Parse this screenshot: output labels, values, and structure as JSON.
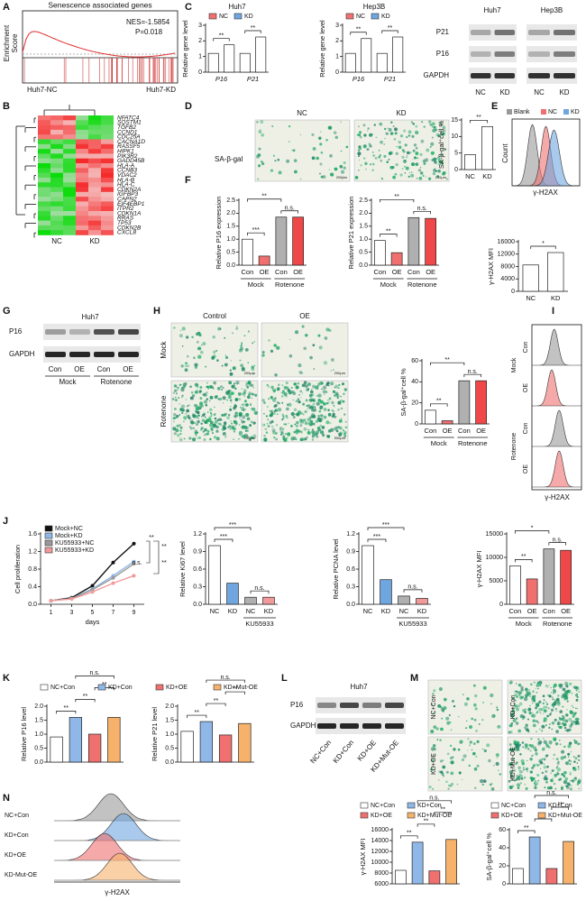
{
  "figure": {
    "panels": [
      "A",
      "B",
      "C",
      "D",
      "E",
      "F",
      "G",
      "H",
      "I",
      "J",
      "K",
      "L",
      "M",
      "N"
    ],
    "gsea": {
      "title": "Senescence associated genes",
      "nes": "NES=-1.5854",
      "p": "P=0.018",
      "ylabel": [
        "Enrichment",
        "Score"
      ],
      "groups": [
        "Huh7-NC",
        "Huh7-KD"
      ]
    },
    "heatmap": {
      "genes": [
        "NFATC4",
        "SQSTM1",
        "TGFB2",
        "CCND1",
        "CDC25A",
        "CACNA1D",
        "RASSF5",
        "HIPK1",
        "PIK3R2",
        "GADD45B",
        "HLA-A",
        "CCNB3",
        "VDAC2",
        "HLA-B",
        "HLA-C",
        "CDKN2A",
        "IGFBP3",
        "CAPN2",
        "EIF4EBP1",
        "ITPR2",
        "CDKN1A",
        "RRAS",
        "TP53",
        "CDKN2B",
        "CXCL8"
      ],
      "groups": [
        "NC",
        "KD"
      ]
    },
    "blot_c": {
      "cells": [
        "Huh7",
        "Hep3B"
      ],
      "proteins": [
        "P21",
        "P16",
        "GAPDH"
      ],
      "lanes": [
        "NC",
        "KD",
        "NC",
        "KD"
      ]
    },
    "micro_d": {
      "labels": [
        "NC",
        "KD"
      ],
      "stain": "SA-β-gal",
      "scale": "200μm"
    },
    "flow_e": {
      "legend": [
        "Blank",
        "NC",
        "KD"
      ],
      "ylabel": "Count",
      "xlabel": "γ-H2AX"
    },
    "blot_g": {
      "cell": "Huh7",
      "proteins": [
        "P16",
        "GAPDH"
      ],
      "lanes": [
        "Con",
        "OE",
        "Con",
        "OE"
      ],
      "groups": [
        "Mock",
        "Rotenone"
      ]
    },
    "micro_h": {
      "columns": [
        "Control",
        "OE"
      ],
      "rows": [
        "Mock",
        "Rotenone"
      ],
      "scale": "200μm"
    },
    "flow_i": {
      "rows": [
        "Con",
        "OE",
        "Con",
        "OE"
      ],
      "groups": [
        "Mock",
        "Rotenone"
      ],
      "xlabel": "γ-H2AX"
    },
    "blot_l": {
      "cell": "Huh7",
      "proteins": [
        "P16",
        "GAPDH"
      ],
      "lanes": [
        "NC+Con",
        "KD+Con",
        "KD+OE",
        "KD+Mut-OE"
      ]
    },
    "micro_m": {
      "labels": [
        "NC+Con",
        "KD+Con",
        "KD+OE",
        "KD+Mut-OE"
      ]
    },
    "flow_n": {
      "rows": [
        "NC+Con",
        "KD+Con",
        "KD+OE",
        "KD-Mut-OE"
      ],
      "xlabel": "γ-H2AX"
    }
  },
  "chart_data": [
    {
      "type": "bar",
      "title": "Huh7",
      "ylabel": "Relative gene level",
      "categories": [
        "P16",
        "P21"
      ],
      "series": [
        {
          "name": "NC",
          "color": "#f07070",
          "values": [
            1.2,
            1.2
          ]
        },
        {
          "name": "KD",
          "color": "#6fa6e0",
          "values": [
            1.75,
            2.25
          ]
        }
      ],
      "ylim": [
        0,
        3
      ],
      "yticks": [
        0,
        1,
        2,
        3
      ],
      "significance": [
        {
          "label": "**",
          "between": [
            0,
            1
          ]
        },
        {
          "label": "**",
          "between": [
            2,
            3
          ]
        }
      ]
    },
    {
      "type": "bar",
      "title": "Hep3B",
      "ylabel": "Relative gene level",
      "categories": [
        "P16",
        "P21"
      ],
      "series": [
        {
          "name": "NC",
          "color": "#f07070",
          "values": [
            1.2,
            1.2
          ]
        },
        {
          "name": "KD",
          "color": "#6fa6e0",
          "values": [
            2.15,
            2.25
          ]
        }
      ],
      "ylim": [
        0,
        3
      ],
      "yticks": [
        0,
        1,
        2,
        3
      ],
      "significance": [
        {
          "label": "**",
          "between": [
            0,
            1
          ]
        },
        {
          "label": "**",
          "between": [
            2,
            3
          ]
        }
      ]
    },
    {
      "type": "bar",
      "ylabel": "SA-β-gal⁺cell %",
      "categories": [
        "NC",
        "KD"
      ],
      "values": [
        4.5,
        13
      ],
      "ylim": [
        0,
        15
      ],
      "yticks": [
        0,
        5,
        10,
        15
      ],
      "significance": [
        {
          "label": "**",
          "between": [
            0,
            1
          ]
        }
      ]
    },
    {
      "type": "bar",
      "ylabel": "γ-H2AX MFI",
      "categories": [
        "NC",
        "KD"
      ],
      "values": [
        8500,
        12500
      ],
      "ylim": [
        0,
        16000
      ],
      "yticks": [
        0,
        4000,
        8000,
        12000,
        16000
      ],
      "significance": [
        {
          "label": "*",
          "between": [
            0,
            1
          ]
        }
      ]
    },
    {
      "type": "bar",
      "ylabel": "Relative P16 expression",
      "categories": [
        "Con",
        "OE",
        "Con",
        "OE"
      ],
      "values": [
        1.0,
        0.35,
        1.85,
        1.85
      ],
      "colors": [
        "#ffffff",
        "#f07070",
        "#b0b0b0",
        "#f04848"
      ],
      "groups": [
        {
          "label": "Mock",
          "span": [
            0,
            1
          ]
        },
        {
          "label": "Rotenone",
          "span": [
            2,
            3
          ]
        }
      ],
      "ylim": [
        0,
        2.5
      ],
      "yticks": [
        {
          "value": 0,
          "label": "0.0"
        },
        0.5,
        {
          "value": 1,
          "label": "1.0"
        },
        1.5,
        {
          "value": 2,
          "label": "2.0"
        },
        2.5
      ],
      "significance": [
        {
          "label": "***",
          "between": [
            0,
            1
          ]
        },
        {
          "label": "n.s.",
          "between": [
            2,
            3
          ]
        },
        {
          "label": "**",
          "between": [
            0,
            2
          ]
        }
      ]
    },
    {
      "type": "bar",
      "ylabel": "Relative P21 expression",
      "categories": [
        "Con",
        "OE",
        "Con",
        "OE"
      ],
      "values": [
        0.95,
        0.48,
        1.83,
        1.8
      ],
      "colors": [
        "#ffffff",
        "#f07070",
        "#b0b0b0",
        "#f04848"
      ],
      "groups": [
        {
          "label": "Mock",
          "span": [
            0,
            1
          ]
        },
        {
          "label": "Rotenone",
          "span": [
            2,
            3
          ]
        }
      ],
      "ylim": [
        0,
        2.5
      ],
      "yticks": [
        {
          "value": 0,
          "label": "0.0"
        },
        0.5,
        {
          "value": 1,
          "label": "1.0"
        },
        1.5,
        {
          "value": 2,
          "label": "2.0"
        },
        2.5
      ],
      "significance": [
        {
          "label": "**",
          "between": [
            0,
            1
          ]
        },
        {
          "label": "n.s.",
          "between": [
            2,
            3
          ]
        },
        {
          "label": "**",
          "between": [
            0,
            2
          ]
        }
      ]
    },
    {
      "type": "bar",
      "ylabel": "SA-β-gal⁺cell %",
      "categories": [
        "Con",
        "OE",
        "Con",
        "OE"
      ],
      "values": [
        13,
        3,
        41,
        41
      ],
      "colors": [
        "#ffffff",
        "#f07070",
        "#b0b0b0",
        "#f04848"
      ],
      "groups": [
        {
          "label": "Mock",
          "span": [
            0,
            1
          ]
        },
        {
          "label": "Rotenone",
          "span": [
            2,
            3
          ]
        }
      ],
      "ylim": [
        0,
        60
      ],
      "yticks": [
        0,
        20,
        40,
        60
      ],
      "significance": [
        {
          "label": "**",
          "between": [
            0,
            1
          ]
        },
        {
          "label": "n.s.",
          "between": [
            2,
            3
          ]
        },
        {
          "label": "**",
          "between": [
            0,
            2
          ]
        }
      ]
    },
    {
      "type": "line",
      "ylabel": "Cell proliferation",
      "xlabel": "days",
      "x": [
        1,
        3,
        5,
        7,
        9
      ],
      "xlim": [
        0,
        10
      ],
      "xticks": [
        1,
        3,
        5,
        7,
        9
      ],
      "ylim": [
        0,
        1.6
      ],
      "yticks": [
        {
          "value": 0,
          "label": "0.0"
        },
        0.4,
        0.8,
        1.2,
        1.6
      ],
      "series": [
        {
          "name": "Mock+NC",
          "color": "#111111",
          "values": [
            0.08,
            0.15,
            0.42,
            0.95,
            1.38
          ]
        },
        {
          "name": "Mock+KD",
          "color": "#8fb8e8",
          "values": [
            0.08,
            0.13,
            0.35,
            0.65,
            0.97
          ]
        },
        {
          "name": "KU55933+NC",
          "color": "#999999",
          "values": [
            0.08,
            0.13,
            0.33,
            0.6,
            0.92
          ]
        },
        {
          "name": "KU55933+KD",
          "color": "#f29a9a",
          "values": [
            0.08,
            0.12,
            0.28,
            0.48,
            0.65
          ]
        }
      ],
      "annotations": [
        "**",
        "**",
        "n.s.",
        "**"
      ]
    },
    {
      "type": "bar",
      "ylabel": "Relative Ki67 level",
      "categories": [
        "NC",
        "KD",
        "NC",
        "KD"
      ],
      "values": [
        1.0,
        0.36,
        0.12,
        0.12
      ],
      "colors": [
        "#ffffff",
        "#6fa6e0",
        "#b0b0b0",
        "#f29a9a"
      ],
      "groups": [
        {
          "label": "KU55933",
          "span": [
            2,
            3
          ]
        }
      ],
      "ylim": [
        0,
        1.2
      ],
      "yticks": [
        {
          "value": 0,
          "label": "0.0"
        },
        0.3,
        0.6,
        0.9,
        1.2
      ],
      "significance": [
        {
          "label": "***",
          "between": [
            0,
            1
          ]
        },
        {
          "label": "n.s.",
          "between": [
            2,
            3
          ]
        },
        {
          "label": "***",
          "between": [
            0,
            2
          ]
        }
      ]
    },
    {
      "type": "bar",
      "ylabel": "Relative PCNA level",
      "categories": [
        "NC",
        "KD",
        "NC",
        "KD"
      ],
      "values": [
        1.0,
        0.42,
        0.14,
        0.1
      ],
      "colors": [
        "#ffffff",
        "#6fa6e0",
        "#b0b0b0",
        "#f29a9a"
      ],
      "groups": [
        {
          "label": "KU55933",
          "span": [
            2,
            3
          ]
        }
      ],
      "ylim": [
        0,
        1.2
      ],
      "yticks": [
        {
          "value": 0,
          "label": "0.0"
        },
        0.3,
        0.6,
        0.9,
        1.2
      ],
      "significance": [
        {
          "label": "***",
          "between": [
            0,
            1
          ]
        },
        {
          "label": "n.s.",
          "between": [
            2,
            3
          ]
        },
        {
          "label": "***",
          "between": [
            0,
            2
          ]
        }
      ]
    },
    {
      "type": "bar",
      "ylabel": "γ-H2AX MFI",
      "categories": [
        "Con",
        "OE",
        "Con",
        "OE"
      ],
      "values": [
        8200,
        5400,
        11800,
        11500
      ],
      "colors": [
        "#ffffff",
        "#f07070",
        "#b0b0b0",
        "#f04848"
      ],
      "groups": [
        {
          "label": "Mock",
          "span": [
            0,
            1
          ]
        },
        {
          "label": "Rotenone",
          "span": [
            2,
            3
          ]
        }
      ],
      "ylim": [
        0,
        15000
      ],
      "yticks": [
        0,
        5000,
        10000,
        15000
      ],
      "significance": [
        {
          "label": "**",
          "between": [
            0,
            1
          ]
        },
        {
          "label": "n.s.",
          "between": [
            2,
            3
          ]
        },
        {
          "label": "*",
          "between": [
            0,
            2
          ]
        }
      ]
    },
    {
      "type": "bar",
      "ylabel": "Relative P16 level",
      "legend": true,
      "categories": [
        "NC+Con",
        "KD+Con",
        "KD+OE",
        "KD+Mut-OE"
      ],
      "values": [
        0.9,
        1.6,
        1.0,
        1.6
      ],
      "colors": [
        "#ffffff",
        "#8fb8e8",
        "#f07070",
        "#f6b26b"
      ],
      "ylim": [
        0,
        2
      ],
      "yticks": [
        {
          "value": 0.5,
          "label": "0.5"
        },
        {
          "value": 1,
          "label": "1.0"
        },
        1.5,
        {
          "value": 2,
          "label": "2.0"
        },
        {
          "value": 0,
          "label": "0.0"
        }
      ],
      "significance": [
        {
          "label": "**",
          "between": [
            0,
            1
          ]
        },
        {
          "label": "**",
          "between": [
            1,
            2
          ]
        },
        {
          "label": "**",
          "between": [
            2,
            3
          ]
        },
        {
          "label": "n.s.",
          "between": [
            1,
            3
          ]
        }
      ]
    },
    {
      "type": "bar",
      "ylabel": "Relative P21 level",
      "values": [
        1.1,
        1.45,
        0.97,
        1.38
      ],
      "colors": [
        "#ffffff",
        "#8fb8e8",
        "#f07070",
        "#f6b26b"
      ],
      "ylim": [
        0,
        2
      ],
      "yticks": [
        {
          "value": 0,
          "label": "0.0"
        },
        0.5,
        {
          "value": 1,
          "label": "1.0"
        },
        1.5,
        {
          "value": 2,
          "label": "2.0"
        }
      ],
      "significance": [
        {
          "label": "**",
          "between": [
            0,
            1
          ]
        },
        {
          "label": "**",
          "between": [
            1,
            2
          ]
        },
        {
          "label": "**",
          "between": [
            2,
            3
          ]
        },
        {
          "label": "n.s.",
          "between": [
            1,
            3
          ]
        }
      ]
    },
    {
      "type": "bar",
      "ylabel": "γ-H2AX MFI",
      "legend": true,
      "categories": [
        "NC+Con",
        "KD+Con",
        "KD+OE",
        "KD+Mut-OE"
      ],
      "values": [
        8500,
        13700,
        8400,
        14200
      ],
      "colors": [
        "#ffffff",
        "#8fb8e8",
        "#f07070",
        "#f6b26b"
      ],
      "ylim": [
        6000,
        16000
      ],
      "yticks": [
        6000,
        8000,
        10000,
        12000,
        14000,
        16000
      ],
      "significance": [
        {
          "label": "**",
          "between": [
            0,
            1
          ]
        },
        {
          "label": "**",
          "between": [
            1,
            2
          ]
        },
        {
          "label": "**",
          "between": [
            2,
            3
          ]
        },
        {
          "label": "n.s.",
          "between": [
            1,
            3
          ]
        }
      ]
    },
    {
      "type": "bar",
      "ylabel": "SA-β-gal⁺cell %",
      "legend": true,
      "categories": [
        "NC+Con",
        "KD+Con",
        "KD+OE",
        "KD+Mut-OE"
      ],
      "values": [
        17,
        52,
        17,
        47
      ],
      "colors": [
        "#ffffff",
        "#8fb8e8",
        "#f07070",
        "#f6b26b"
      ],
      "ylim": [
        0,
        60
      ],
      "yticks": [
        0,
        20,
        40,
        60
      ],
      "significance": [
        {
          "label": "**",
          "between": [
            0,
            1
          ]
        },
        {
          "label": "**",
          "between": [
            1,
            2
          ]
        },
        {
          "label": "**",
          "between": [
            2,
            3
          ]
        },
        {
          "label": "n.s.",
          "between": [
            1,
            3
          ]
        }
      ]
    }
  ]
}
